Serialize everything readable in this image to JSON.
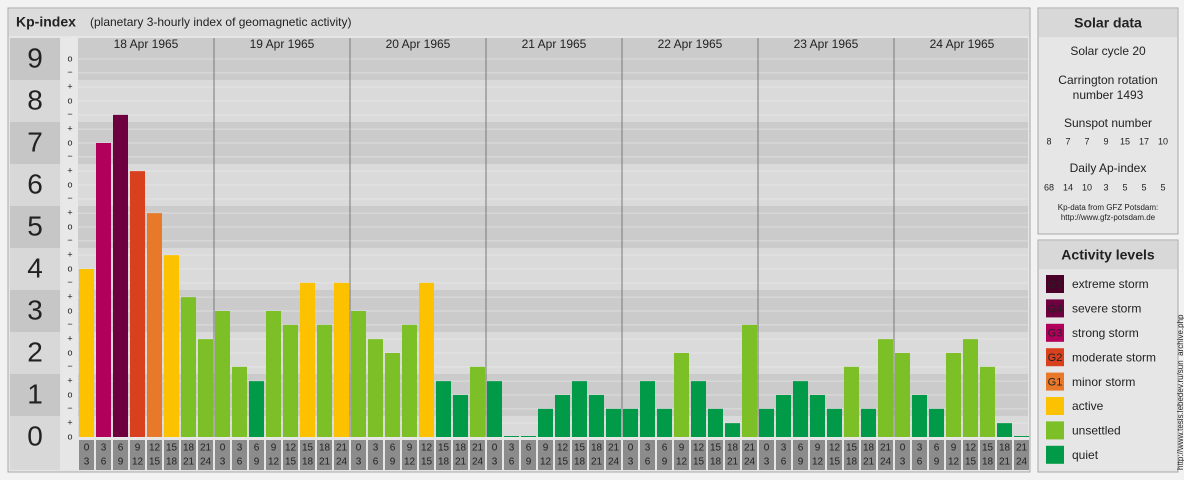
{
  "header": {
    "title": "Kp-index",
    "subtitle": "(planetary 3-hourly index of geomagnetic activity)"
  },
  "chart_data": {
    "type": "bar",
    "ylim": [
      0,
      9.5
    ],
    "yticks": [
      0,
      1,
      2,
      3,
      4,
      5,
      6,
      7,
      8,
      9
    ],
    "minor_ticks": [
      {
        "value": 0,
        "label": "o"
      },
      {
        "value": 0.33,
        "label": "+"
      },
      {
        "value": 0.67,
        "label": "−"
      },
      {
        "value": 1,
        "label": "o"
      },
      {
        "value": 1.33,
        "label": "+"
      },
      {
        "value": 1.67,
        "label": "−"
      },
      {
        "value": 2,
        "label": "o"
      },
      {
        "value": 2.33,
        "label": "+"
      },
      {
        "value": 2.67,
        "label": "−"
      },
      {
        "value": 3,
        "label": "o"
      },
      {
        "value": 3.33,
        "label": "+"
      },
      {
        "value": 3.67,
        "label": "−"
      },
      {
        "value": 4,
        "label": "o"
      },
      {
        "value": 4.33,
        "label": "+"
      },
      {
        "value": 4.67,
        "label": "−"
      },
      {
        "value": 5,
        "label": "o"
      },
      {
        "value": 5.33,
        "label": "+"
      },
      {
        "value": 5.67,
        "label": "−"
      },
      {
        "value": 6,
        "label": "o"
      },
      {
        "value": 6.33,
        "label": "+"
      },
      {
        "value": 6.67,
        "label": "−"
      },
      {
        "value": 7,
        "label": "o"
      },
      {
        "value": 7.33,
        "label": "+"
      },
      {
        "value": 7.67,
        "label": "−"
      },
      {
        "value": 8,
        "label": "o"
      },
      {
        "value": 8.33,
        "label": "+"
      },
      {
        "value": 8.67,
        "label": "−"
      },
      {
        "value": 9,
        "label": "o"
      }
    ],
    "hours": [
      [
        0,
        3
      ],
      [
        3,
        6
      ],
      [
        6,
        9
      ],
      [
        9,
        12
      ],
      [
        12,
        15
      ],
      [
        15,
        18
      ],
      [
        18,
        21
      ],
      [
        21,
        24
      ]
    ],
    "days": [
      {
        "date": "18 Apr 1965",
        "values": [
          4,
          7,
          7.67,
          6.33,
          5.33,
          4.33,
          3.33,
          2.33
        ],
        "colors": [
          "#fcc200",
          "#b0005c",
          "#6e0040",
          "#d9411e",
          "#e8782a",
          "#fcc200",
          "#7cbf26",
          "#7cbf26"
        ]
      },
      {
        "date": "19 Apr 1965",
        "values": [
          3,
          1.67,
          1.33,
          3,
          2.67,
          3.67,
          2.67,
          3.67
        ],
        "colors": [
          "#7cbf26",
          "#7cbf26",
          "#009a49",
          "#7cbf26",
          "#7cbf26",
          "#fcc200",
          "#7cbf26",
          "#fcc200"
        ]
      },
      {
        "date": "20 Apr 1965",
        "values": [
          3,
          2.33,
          2,
          2.67,
          3.67,
          1.33,
          1,
          1.67
        ],
        "colors": [
          "#7cbf26",
          "#7cbf26",
          "#7cbf26",
          "#7cbf26",
          "#fcc200",
          "#009a49",
          "#009a49",
          "#7cbf26"
        ]
      },
      {
        "date": "21 Apr 1965",
        "values": [
          1.33,
          0,
          0,
          0.67,
          1,
          1.33,
          1,
          0.67
        ],
        "colors": [
          "#009a49",
          "#009a49",
          "#009a49",
          "#009a49",
          "#009a49",
          "#009a49",
          "#009a49",
          "#009a49"
        ]
      },
      {
        "date": "22 Apr 1965",
        "values": [
          0.67,
          1.33,
          0.67,
          2,
          1.33,
          0.67,
          0.33,
          2.67
        ],
        "colors": [
          "#009a49",
          "#009a49",
          "#009a49",
          "#7cbf26",
          "#009a49",
          "#009a49",
          "#009a49",
          "#7cbf26"
        ]
      },
      {
        "date": "23 Apr 1965",
        "values": [
          0.67,
          1,
          1.33,
          1,
          0.67,
          1.67,
          0.67,
          2.33
        ],
        "colors": [
          "#009a49",
          "#009a49",
          "#009a49",
          "#009a49",
          "#009a49",
          "#7cbf26",
          "#009a49",
          "#7cbf26"
        ]
      },
      {
        "date": "24 Apr 1965",
        "values": [
          2,
          1,
          0.67,
          2,
          2.33,
          1.67,
          0.33,
          0
        ],
        "colors": [
          "#7cbf26",
          "#009a49",
          "#009a49",
          "#7cbf26",
          "#7cbf26",
          "#7cbf26",
          "#009a49",
          "#009a49"
        ]
      }
    ]
  },
  "solar_data": {
    "title": "Solar data",
    "solar_cycle": "Solar cycle 20",
    "carrington": [
      "Carrington rotation",
      "number 1493"
    ],
    "sunspot_title": "Sunspot number",
    "sunspot_numbers": [
      8,
      7,
      7,
      9,
      15,
      17,
      10
    ],
    "ap_title": "Daily Ap-index",
    "ap_values": [
      68,
      14,
      10,
      3,
      5,
      5,
      5
    ],
    "source": [
      "Kp-data from GFZ Potsdam:",
      "http://www.gfz-potsdam.de"
    ]
  },
  "activity_levels": {
    "title": "Activity levels",
    "levels": [
      {
        "code": "G5",
        "label": "extreme storm",
        "color": "#4a0028"
      },
      {
        "code": "G4",
        "label": "severe storm",
        "color": "#6e0040"
      },
      {
        "code": "G3",
        "label": "strong storm",
        "color": "#b0005c"
      },
      {
        "code": "G2",
        "label": "moderate storm",
        "color": "#d9411e"
      },
      {
        "code": "G1",
        "label": "minor storm",
        "color": "#e8782a"
      },
      {
        "label": "active",
        "color": "#fcc200"
      },
      {
        "label": "unsettled",
        "color": "#7cbf26"
      },
      {
        "label": "quiet",
        "color": "#009a49"
      }
    ]
  },
  "watermark": "http://www.tesis.lebedev.ru/sun_archive.php"
}
